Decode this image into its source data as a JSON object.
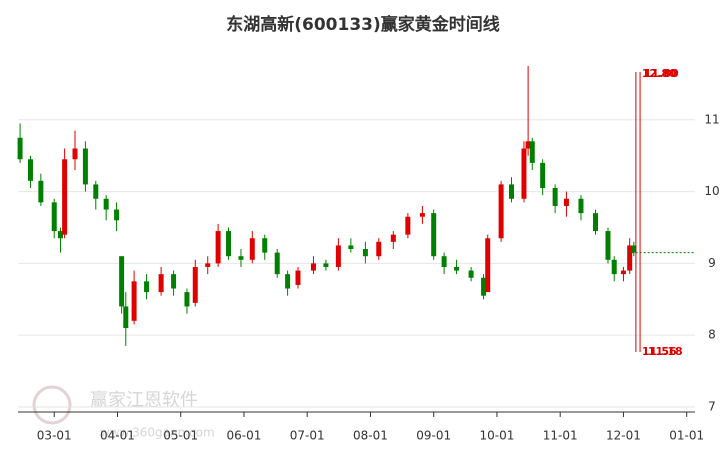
{
  "chart_data": {
    "type": "candlestick",
    "title": "东湖高新(600133)赢家黄金时间线",
    "x": [
      "02-15",
      "02-20",
      "02-25",
      "03-01",
      "03-04",
      "03-06",
      "03-11",
      "03-16",
      "03-21",
      "03-26",
      "03-31",
      "04-03",
      "04-05",
      "04-09",
      "04-15",
      "04-22",
      "04-28",
      "05-04",
      "05-08",
      "05-14",
      "05-19",
      "05-24",
      "05-30",
      "06-05",
      "06-11",
      "06-17",
      "06-22",
      "06-27",
      "07-04",
      "07-10",
      "07-16",
      "07-22",
      "07-29",
      "08-05",
      "08-12",
      "08-19",
      "08-26",
      "09-01",
      "09-06",
      "09-12",
      "09-19",
      "09-25",
      "09-27",
      "10-03",
      "10-08",
      "10-14",
      "10-16",
      "10-18",
      "10-23",
      "10-29",
      "11-04",
      "11-11",
      "11-18",
      "11-24",
      "11-27",
      "12-01",
      "12-04",
      "12-06"
    ],
    "open": [
      10.75,
      10.45,
      10.15,
      9.85,
      9.45,
      9.4,
      10.45,
      10.6,
      10.1,
      9.9,
      9.75,
      9.1,
      8.4,
      8.2,
      8.75,
      8.6,
      8.85,
      8.6,
      8.45,
      8.95,
      9.0,
      9.45,
      9.1,
      9.05,
      9.35,
      9.15,
      8.85,
      8.7,
      8.9,
      9.0,
      8.95,
      9.25,
      9.2,
      9.1,
      9.3,
      9.4,
      9.65,
      9.7,
      9.1,
      8.95,
      8.9,
      8.8,
      8.6,
      9.35,
      10.1,
      9.9,
      10.6,
      10.7,
      10.4,
      10.05,
      9.8,
      9.9,
      9.7,
      9.45,
      9.05,
      8.85,
      8.9,
      9.25
    ],
    "high": [
      10.95,
      10.5,
      10.25,
      9.9,
      9.5,
      10.6,
      10.85,
      10.7,
      10.15,
      9.95,
      9.85,
      9.1,
      8.6,
      8.9,
      8.85,
      8.95,
      8.9,
      8.65,
      9.05,
      9.1,
      9.55,
      9.5,
      9.2,
      9.45,
      9.4,
      9.2,
      8.9,
      8.95,
      9.1,
      9.05,
      9.35,
      9.35,
      9.3,
      9.35,
      9.45,
      9.7,
      9.8,
      9.75,
      9.15,
      9.05,
      8.95,
      8.85,
      9.4,
      10.15,
      10.2,
      10.7,
      11.75,
      10.75,
      10.45,
      10.1,
      10.0,
      9.95,
      9.75,
      9.5,
      9.1,
      8.95,
      9.35,
      9.3
    ],
    "low": [
      10.4,
      10.05,
      9.8,
      9.35,
      9.15,
      9.35,
      10.3,
      10.0,
      9.75,
      9.6,
      9.45,
      8.3,
      7.85,
      8.15,
      8.5,
      8.55,
      8.55,
      8.3,
      8.4,
      8.85,
      8.95,
      9.05,
      8.95,
      9.0,
      9.05,
      8.8,
      8.55,
      8.65,
      8.85,
      8.9,
      8.9,
      9.15,
      9.0,
      9.05,
      9.2,
      9.35,
      9.55,
      9.05,
      8.85,
      8.85,
      8.75,
      8.5,
      8.6,
      9.3,
      9.85,
      9.85,
      10.5,
      10.3,
      9.95,
      9.7,
      9.65,
      9.6,
      9.4,
      9.0,
      8.75,
      8.75,
      8.85,
      9.1
    ],
    "close": [
      10.45,
      10.15,
      9.85,
      9.45,
      9.35,
      10.45,
      10.6,
      10.1,
      9.9,
      9.75,
      9.6,
      8.4,
      8.1,
      8.75,
      8.6,
      8.85,
      8.65,
      8.4,
      8.95,
      9.0,
      9.45,
      9.1,
      9.05,
      9.35,
      9.15,
      8.85,
      8.65,
      8.9,
      9.0,
      8.95,
      9.25,
      9.2,
      9.1,
      9.3,
      9.4,
      9.65,
      9.7,
      9.1,
      8.95,
      8.9,
      8.8,
      8.55,
      9.35,
      10.1,
      9.9,
      10.6,
      10.7,
      10.4,
      10.05,
      9.8,
      9.9,
      9.7,
      9.45,
      9.05,
      8.85,
      8.9,
      9.25,
      9.15
    ],
    "up_color": "#e00000",
    "down_color": "#008000",
    "xlim": [
      "02-14",
      "01-05"
    ],
    "xticks": [
      "03-01",
      "04-01",
      "05-01",
      "06-01",
      "07-01",
      "08-01",
      "09-01",
      "10-01",
      "11-01",
      "12-01",
      "01-01"
    ],
    "ylim": [
      6.93,
      12.0
    ],
    "yticks": [
      7,
      8,
      9,
      10,
      11
    ],
    "grid": true,
    "vlines": [
      {
        "x": "12-07"
      },
      {
        "x": "12-09"
      }
    ],
    "vline_color": "#e00000",
    "top_labels": [
      "12.80",
      "11.80"
    ],
    "bottom_labels": [
      "11.56",
      "11.18"
    ],
    "reference_line": {
      "value": 9.15,
      "from": "12-03",
      "color": "#008000"
    },
    "watermark": {
      "name": "赢家江恩软件",
      "url": "www.360gann.com"
    }
  }
}
